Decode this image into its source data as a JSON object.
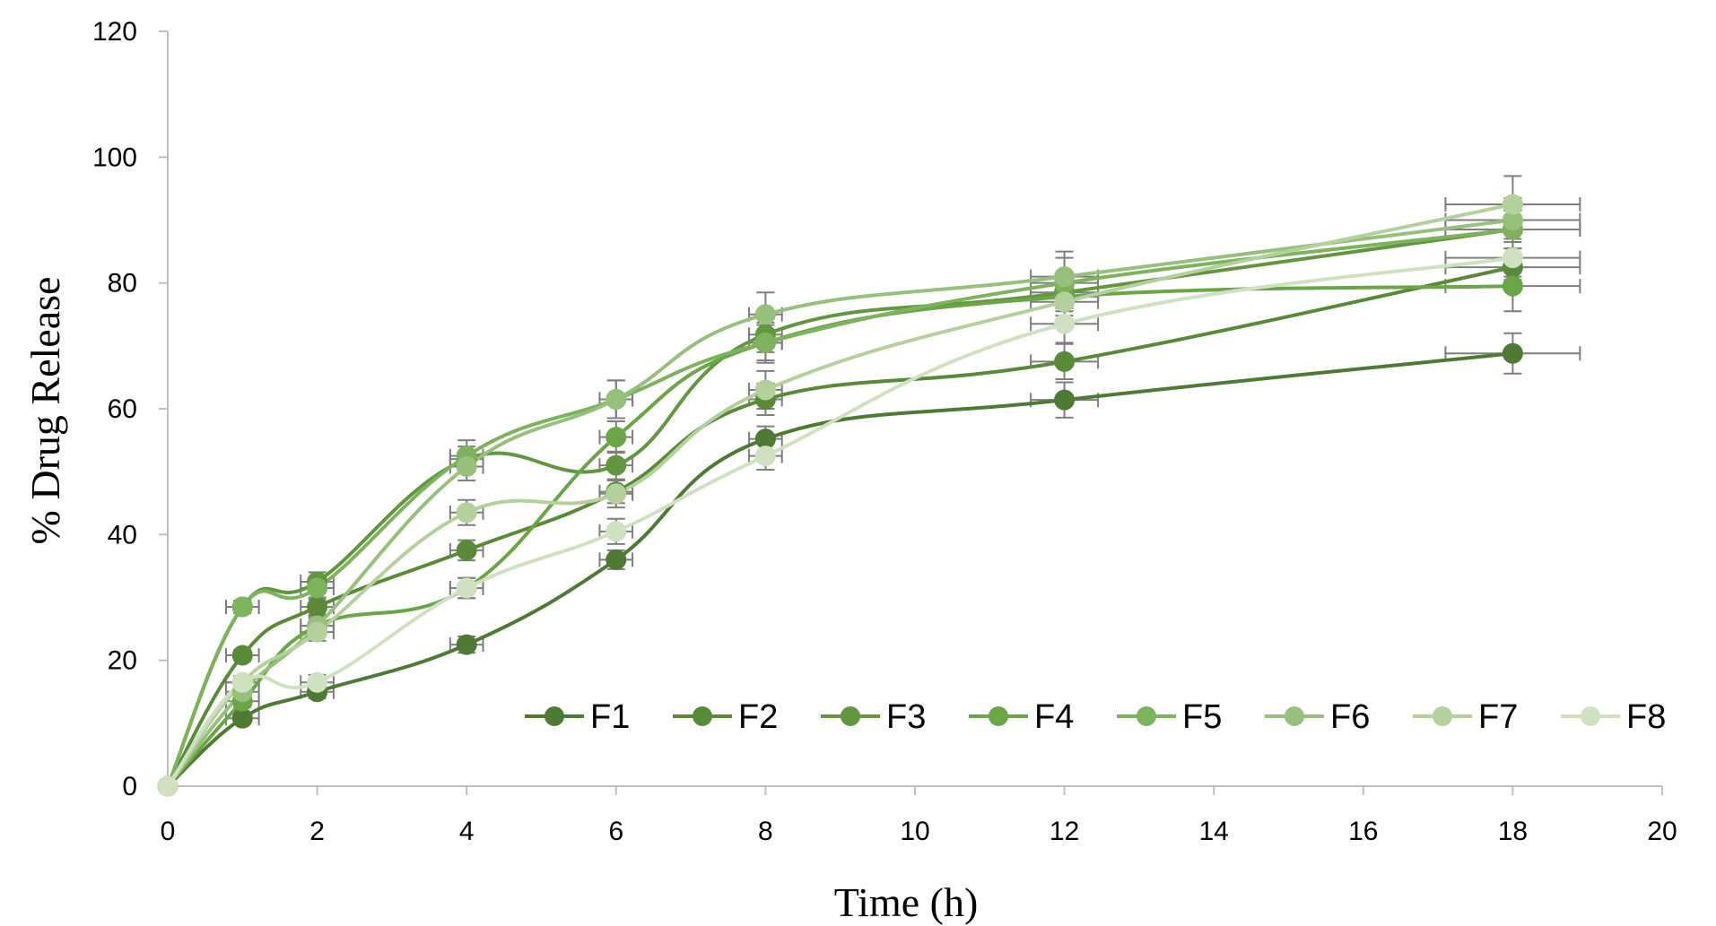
{
  "chart_data": {
    "type": "line",
    "title": "",
    "xlabel": "Time (h)",
    "ylabel": "% Drug Release",
    "xlim": [
      0,
      20
    ],
    "ylim": [
      0,
      120
    ],
    "xticks": [
      0,
      2,
      4,
      6,
      8,
      10,
      12,
      14,
      16,
      18,
      20
    ],
    "yticks": [
      0,
      20,
      40,
      60,
      80,
      100,
      120
    ],
    "x": [
      0,
      1,
      2,
      4,
      6,
      8,
      12,
      18
    ],
    "grid": false,
    "legend_position": "bottom-right, inside plot",
    "smooth": true,
    "error_bars": true,
    "series": [
      {
        "name": "F1",
        "color": "#4f7a33",
        "values": [
          0,
          10.8,
          15.0,
          22.5,
          36.0,
          55.2,
          61.4,
          68.8
        ],
        "errors": [
          0,
          0.8,
          1.0,
          1.3,
          1.5,
          2.0,
          2.8,
          3.2
        ]
      },
      {
        "name": "F2",
        "color": "#588a38",
        "values": [
          0,
          20.8,
          28.5,
          37.5,
          46.8,
          61.5,
          67.5,
          82.5
        ],
        "errors": [
          0,
          0.9,
          1.2,
          1.6,
          1.8,
          2.5,
          2.8,
          2.0
        ]
      },
      {
        "name": "F3",
        "color": "#63973f",
        "values": [
          0,
          28.5,
          32.5,
          52.0,
          51.0,
          71.8,
          78.5,
          88.5
        ],
        "errors": [
          0,
          1.0,
          1.5,
          2.0,
          2.2,
          2.8,
          3.0,
          3.0
        ]
      },
      {
        "name": "F4",
        "color": "#6aa646",
        "values": [
          0,
          13.5,
          25.5,
          31.5,
          55.5,
          70.5,
          77.8,
          79.5
        ],
        "errors": [
          0,
          0.9,
          1.2,
          1.6,
          2.5,
          2.8,
          3.0,
          4.0
        ]
      },
      {
        "name": "F5",
        "color": "#7db35c",
        "values": [
          0,
          28.5,
          31.5,
          52.5,
          61.5,
          70.5,
          80.0,
          88.5
        ],
        "errors": [
          0,
          1.0,
          1.5,
          2.5,
          3.0,
          3.2,
          4.0,
          3.0
        ]
      },
      {
        "name": "F6",
        "color": "#96c07c",
        "values": [
          0,
          15.0,
          25.5,
          50.8,
          61.5,
          75.0,
          81.0,
          90.0
        ],
        "errors": [
          0,
          1.0,
          1.5,
          2.2,
          3.0,
          3.5,
          4.0,
          3.5
        ]
      },
      {
        "name": "F7",
        "color": "#b3d09d",
        "values": [
          0,
          16.5,
          24.5,
          43.5,
          46.5,
          63.0,
          77.0,
          92.5
        ],
        "errors": [
          0,
          1.0,
          1.4,
          2.0,
          2.2,
          3.0,
          3.0,
          4.5
        ]
      },
      {
        "name": "F8",
        "color": "#cfe1c1",
        "values": [
          0,
          16.5,
          16.5,
          31.5,
          40.5,
          52.5,
          73.5,
          84.0
        ],
        "errors": [
          0,
          1.0,
          1.2,
          1.6,
          2.0,
          2.2,
          3.0,
          3.0
        ]
      }
    ]
  }
}
